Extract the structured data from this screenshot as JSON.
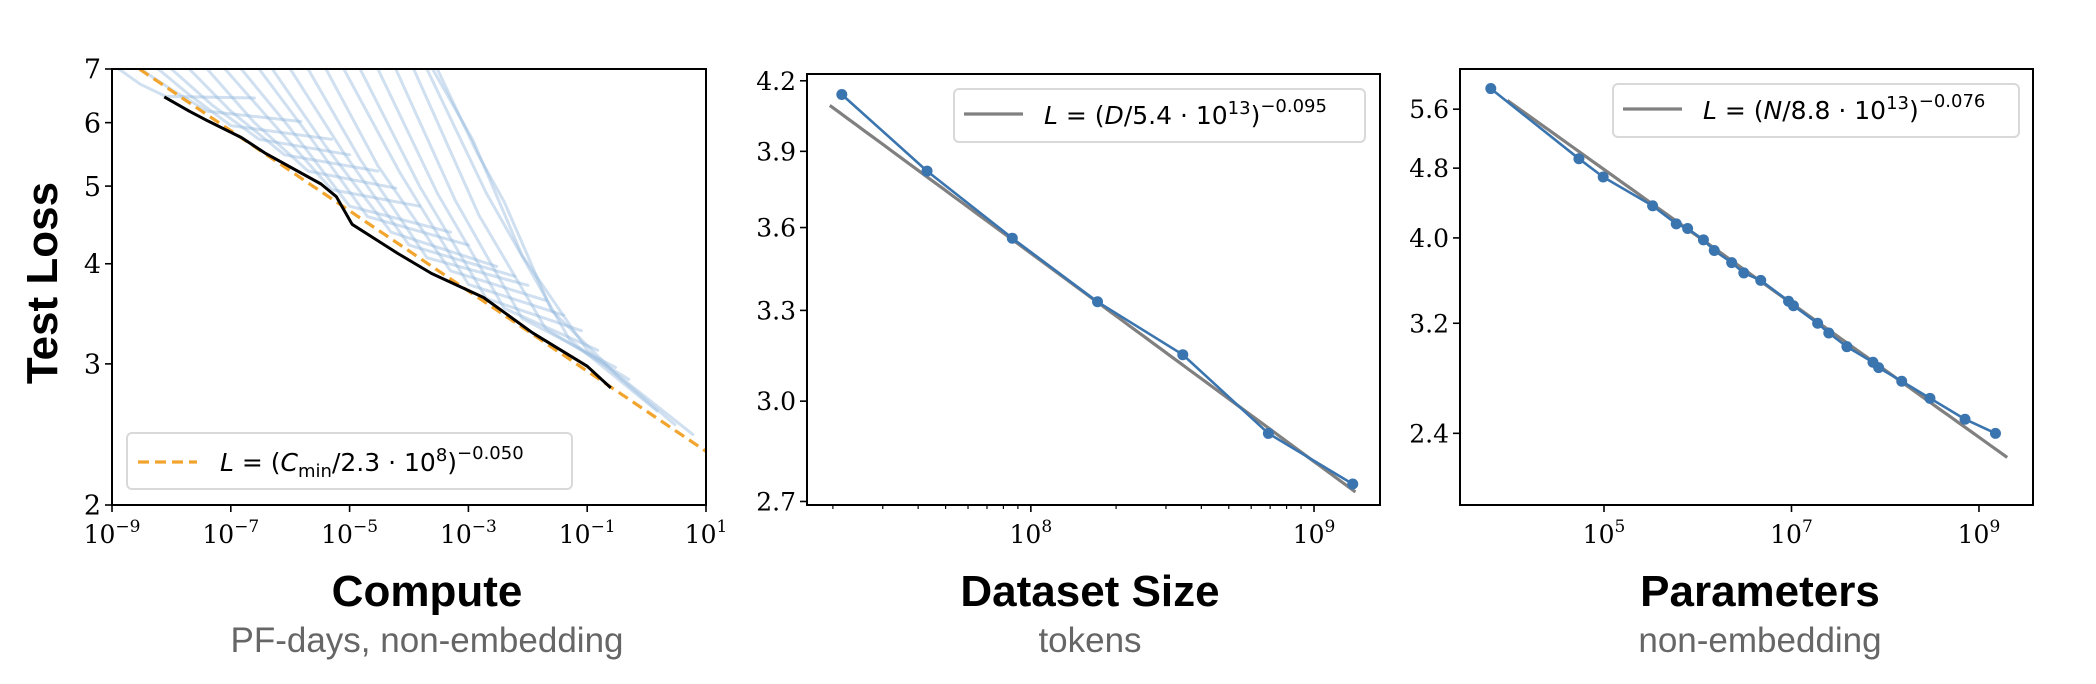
{
  "ylabel": "Test Loss",
  "chart_data": [
    {
      "type": "line",
      "xlabel": "Compute",
      "xsublabel": "PF-days, non-embedding",
      "ylabel": "Test Loss",
      "xscale": "log",
      "yscale": "log",
      "xlim": [
        1e-09,
        10
      ],
      "ylim": [
        2,
        7
      ],
      "grid": false,
      "legend_position": "bottom-left",
      "xticks": [
        {
          "value": 1e-09,
          "base": "10",
          "exp": "−9"
        },
        {
          "value": 1e-07,
          "base": "10",
          "exp": "−7"
        },
        {
          "value": 1e-05,
          "base": "10",
          "exp": "−5"
        },
        {
          "value": 0.001,
          "base": "10",
          "exp": "−3"
        },
        {
          "value": 0.1,
          "base": "10",
          "exp": "−1"
        },
        {
          "value": 10,
          "base": "10",
          "exp": "1"
        }
      ],
      "yticks": [
        {
          "value": 2,
          "label": "2"
        },
        {
          "value": 3,
          "label": "3"
        },
        {
          "value": 4,
          "label": "4"
        },
        {
          "value": 5,
          "label": "5"
        },
        {
          "value": 6,
          "label": "6"
        },
        {
          "value": 7,
          "label": "7"
        }
      ],
      "colors": {
        "curves": "#8fb5dc",
        "frontier": "#000000",
        "fit": "#f2a52e"
      },
      "learning_curves": [
        [
          [
            1.3e-09,
            7
          ],
          [
            3e-09,
            6.7
          ],
          [
            8e-09,
            6.47
          ],
          [
            2.5e-07,
            6.44
          ]
        ],
        [
          [
            3e-09,
            7
          ],
          [
            1e-08,
            6.6
          ],
          [
            4e-08,
            6.2
          ],
          [
            1.5e-06,
            6.02
          ]
        ],
        [
          [
            6e-09,
            7
          ],
          [
            2e-08,
            6.5
          ],
          [
            1e-07,
            5.95
          ],
          [
            5e-06,
            5.72
          ]
        ],
        [
          [
            1e-08,
            7
          ],
          [
            5e-08,
            6.3
          ],
          [
            3e-07,
            5.72
          ],
          [
            1e-05,
            5.47
          ]
        ],
        [
          [
            2e-08,
            7
          ],
          [
            1e-07,
            6.2
          ],
          [
            8e-07,
            5.47
          ],
          [
            3e-05,
            5.22
          ]
        ],
        [
          [
            4e-08,
            7
          ],
          [
            2.5e-07,
            6.0
          ],
          [
            2e-06,
            5.22
          ],
          [
            6e-05,
            4.97
          ]
        ],
        [
          [
            8e-08,
            7
          ],
          [
            5e-07,
            6.0
          ],
          [
            5e-06,
            4.95
          ],
          [
            0.00015,
            4.72
          ]
        ],
        [
          [
            1.5e-07,
            7
          ],
          [
            1e-06,
            5.9
          ],
          [
            1e-05,
            4.72
          ],
          [
            0.0005,
            4.38
          ]
        ],
        [
          [
            3e-07,
            7
          ],
          [
            2e-06,
            5.8
          ],
          [
            2e-05,
            4.58
          ],
          [
            0.001,
            4.22
          ]
        ],
        [
          [
            5e-07,
            7
          ],
          [
            4e-06,
            5.6
          ],
          [
            5e-05,
            4.38
          ],
          [
            0.003,
            3.97
          ]
        ],
        [
          [
            1e-06,
            7
          ],
          [
            8e-06,
            5.5
          ],
          [
            0.0001,
            4.22
          ],
          [
            0.006,
            3.86
          ]
        ],
        [
          [
            2e-06,
            7
          ],
          [
            1.5e-05,
            5.4
          ],
          [
            0.0002,
            4.07
          ],
          [
            0.01,
            3.76
          ]
        ],
        [
          [
            4e-06,
            7
          ],
          [
            3e-05,
            5.3
          ],
          [
            0.0005,
            3.92
          ],
          [
            0.02,
            3.6
          ]
        ],
        [
          [
            8e-06,
            7
          ],
          [
            7e-05,
            5.2
          ],
          [
            0.001,
            3.77
          ],
          [
            0.04,
            3.45
          ]
        ],
        [
          [
            1.5e-05,
            7
          ],
          [
            0.00015,
            5.0
          ],
          [
            0.002,
            3.62
          ],
          [
            0.08,
            3.3
          ]
        ],
        [
          [
            3e-05,
            7
          ],
          [
            0.0003,
            4.9
          ],
          [
            0.004,
            3.52
          ],
          [
            0.15,
            3.12
          ]
        ],
        [
          [
            6e-05,
            7
          ],
          [
            0.0006,
            4.8
          ],
          [
            0.008,
            3.42
          ],
          [
            0.3,
            2.97
          ]
        ],
        [
          [
            0.00012,
            7
          ],
          [
            0.0015,
            4.6
          ],
          [
            0.02,
            3.32
          ],
          [
            0.5,
            2.87
          ]
        ],
        [
          [
            0.0002,
            7
          ],
          [
            0.002,
            4.9
          ],
          [
            0.05,
            3.22
          ],
          [
            1.5,
            2.62
          ]
        ],
        [
          [
            0.00025,
            7
          ],
          [
            0.0012,
            5.7
          ],
          [
            0.008,
            4.1
          ],
          [
            0.1,
            3.12
          ],
          [
            3,
            2.52
          ]
        ],
        [
          [
            0.0003,
            7
          ],
          [
            0.0014,
            5.5
          ],
          [
            0.004,
            4.78
          ],
          [
            0.025,
            3.5
          ],
          [
            0.3,
            2.92
          ],
          [
            6,
            2.45
          ]
        ]
      ],
      "frontier": [
        [
          7.6e-09,
          6.46
        ],
        [
          2e-08,
          6.2
        ],
        [
          4.1e-08,
          6.03
        ],
        [
          1.5e-07,
          5.75
        ],
        [
          3.9e-07,
          5.49
        ],
        [
          3.3e-06,
          5.03
        ],
        [
          6e-06,
          4.85
        ],
        [
          1.1e-05,
          4.48
        ],
        [
          6.5e-05,
          4.12
        ],
        [
          0.00024,
          3.89
        ],
        [
          0.0018,
          3.63
        ],
        [
          0.012,
          3.28
        ],
        [
          0.1,
          2.98
        ],
        [
          0.25,
          2.8
        ]
      ],
      "fit": {
        "formula": "L = (C_min / 2.3e8)^-0.050",
        "coef": 230000000.0,
        "exponent": -0.05,
        "x_range": [
          2.9e-09,
          10
        ],
        "legend": {
          "lhs": "L",
          "eq": " = (",
          "var": "C",
          "sub": "min",
          "mid": "/2.3 · 10",
          "pow": "8",
          "close": ")",
          "exp": "−0.050"
        }
      }
    },
    {
      "type": "line",
      "xlabel": "Dataset Size",
      "xsublabel": "tokens",
      "xscale": "log",
      "yscale": "log",
      "xlim": [
        16200000.0,
        1710000000.0
      ],
      "ylim": [
        2.69,
        4.23
      ],
      "grid": false,
      "legend_position": "top-right",
      "xticks": [
        {
          "value": 100000000.0,
          "base": "10",
          "exp": "8"
        },
        {
          "value": 1000000000.0,
          "base": "10",
          "exp": "9"
        }
      ],
      "yticks": [
        {
          "value": 2.7,
          "label": "2.7"
        },
        {
          "value": 3.0,
          "label": "3.0"
        },
        {
          "value": 3.3,
          "label": "3.3"
        },
        {
          "value": 3.6,
          "label": "3.6"
        },
        {
          "value": 3.9,
          "label": "3.9"
        },
        {
          "value": 4.2,
          "label": "4.2"
        }
      ],
      "colors": {
        "series": "#3b75af",
        "fit": "#808080"
      },
      "x": [
        21500000.0,
        43000000.0,
        86000000.0,
        172000000.0,
        344000000.0,
        690000000.0,
        1370000000.0
      ],
      "y": [
        4.14,
        3.82,
        3.56,
        3.33,
        3.15,
        2.9,
        2.75
      ],
      "fit": {
        "formula": "L = (D / 5.4e13)^-0.095",
        "coef": 54000000000000.0,
        "exponent": -0.095,
        "x_range": [
          19500000.0,
          1400000000.0
        ],
        "legend": {
          "lhs": "L",
          "eq": " = (",
          "var": "D",
          "mid": "/5.4 · 10",
          "pow": "13",
          "close": ")",
          "exp": "−0.095"
        }
      }
    },
    {
      "type": "line",
      "xlabel": "Parameters",
      "xsublabel": "non-embedding",
      "xscale": "log",
      "yscale": "log",
      "xlim": [
        2910.0,
        3770000000.0
      ],
      "ylim": [
        1.99,
        6.22
      ],
      "grid": false,
      "legend_position": "top-right",
      "xticks": [
        {
          "value": 100000.0,
          "base": "10",
          "exp": "5"
        },
        {
          "value": 10000000.0,
          "base": "10",
          "exp": "7"
        },
        {
          "value": 1000000000.0,
          "base": "10",
          "exp": "9"
        }
      ],
      "yticks": [
        {
          "value": 2.4,
          "label": "2.4"
        },
        {
          "value": 3.2,
          "label": "3.2"
        },
        {
          "value": 4.0,
          "label": "4.0"
        },
        {
          "value": 4.8,
          "label": "4.8"
        },
        {
          "value": 5.6,
          "label": "5.6"
        }
      ],
      "colors": {
        "series": "#3b75af",
        "fit": "#808080"
      },
      "x": [
        6200.0,
        54000.0,
        98000.0,
        330000.0,
        590000.0,
        780000.0,
        1150000.0,
        1500000.0,
        2300000.0,
        3100000.0,
        4700000.0,
        9300000.0,
        10500000.0,
        19000000.0,
        25000000.0,
        39000000.0,
        74000000.0,
        85000000.0,
        150000000.0,
        300000000.0,
        710000000.0,
        1500000000.0
      ],
      "y": [
        5.91,
        4.92,
        4.69,
        4.35,
        4.15,
        4.1,
        3.98,
        3.87,
        3.75,
        3.65,
        3.58,
        3.39,
        3.35,
        3.2,
        3.12,
        3.01,
        2.89,
        2.85,
        2.75,
        2.63,
        2.49,
        2.4
      ],
      "fit": {
        "formula": "L = (N / 8.8e13)^-0.076",
        "coef": 88000000000000.0,
        "exponent": -0.076,
        "x_range": [
          9300.0,
          2000000000.0
        ],
        "legend": {
          "lhs": "L",
          "eq": " = (",
          "var": "N",
          "mid": "/8.8 · 10",
          "pow": "13",
          "close": ")",
          "exp": "−0.076"
        }
      }
    }
  ]
}
